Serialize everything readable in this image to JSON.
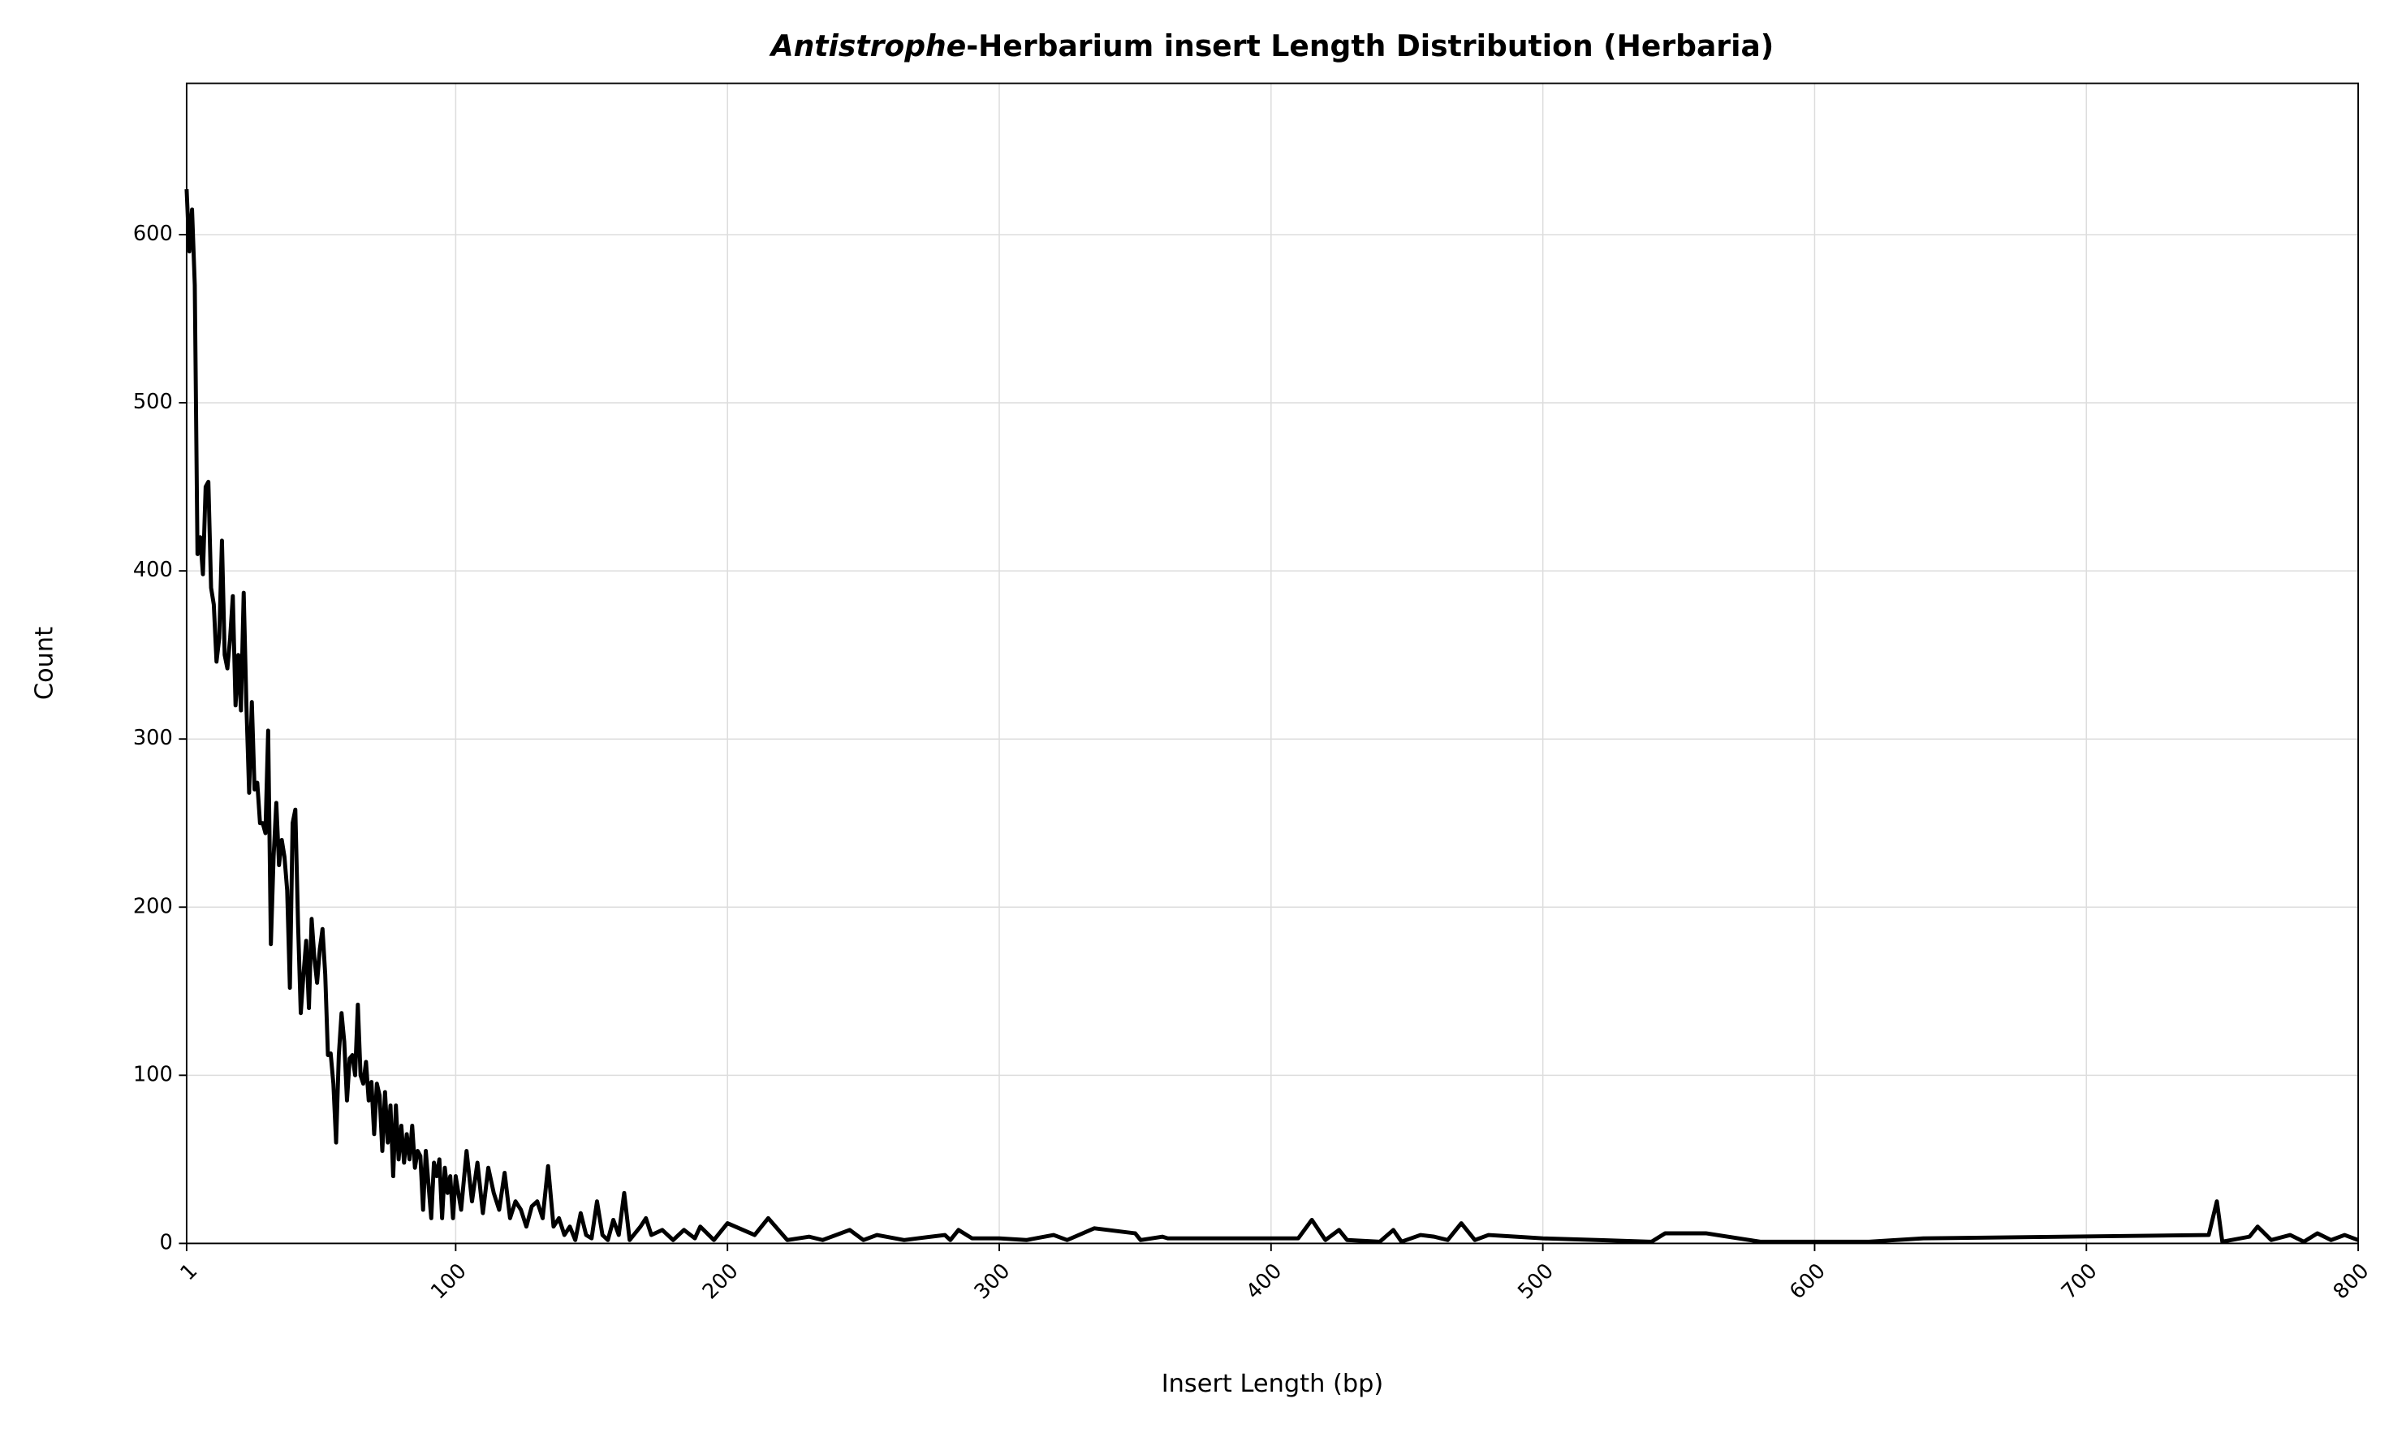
{
  "chart_data": {
    "type": "line",
    "title_italic": "Antistrophe",
    "title_rest": "-Herbarium insert Length Distribution (Herbaria)",
    "xlabel": "Insert Length (bp)",
    "ylabel": "Count",
    "xlim": [
      1,
      800
    ],
    "ylim": [
      0,
      690
    ],
    "xticks": [
      1,
      100,
      200,
      300,
      400,
      500,
      600,
      700,
      800
    ],
    "yticks": [
      0,
      100,
      200,
      300,
      400,
      500,
      600
    ],
    "grid": true,
    "series": [
      {
        "color": "#000000",
        "x": [
          1,
          2,
          3,
          4,
          5,
          6,
          7,
          8,
          9,
          10,
          11,
          12,
          13,
          14,
          15,
          16,
          17,
          18,
          19,
          20,
          21,
          22,
          23,
          24,
          25,
          26,
          27,
          28,
          29,
          30,
          31,
          32,
          33,
          34,
          35,
          36,
          37,
          38,
          39,
          40,
          41,
          42,
          43,
          44,
          45,
          46,
          47,
          48,
          49,
          50,
          51,
          52,
          53,
          54,
          55,
          56,
          57,
          58,
          59,
          60,
          61,
          62,
          63,
          64,
          65,
          66,
          67,
          68,
          69,
          70,
          71,
          72,
          73,
          74,
          75,
          76,
          77,
          78,
          79,
          80,
          81,
          82,
          83,
          84,
          85,
          86,
          87,
          88,
          89,
          90,
          91,
          92,
          93,
          94,
          95,
          96,
          97,
          98,
          99,
          100,
          102,
          104,
          106,
          108,
          110,
          112,
          114,
          116,
          118,
          120,
          122,
          124,
          126,
          128,
          130,
          132,
          134,
          136,
          138,
          140,
          142,
          144,
          146,
          148,
          150,
          152,
          154,
          156,
          158,
          160,
          162,
          164,
          168,
          170,
          172,
          176,
          180,
          184,
          188,
          190,
          195,
          200,
          210,
          215,
          222,
          230,
          235,
          245,
          250,
          255,
          265,
          270,
          280,
          282,
          285,
          290,
          300,
          310,
          320,
          325,
          335,
          350,
          352,
          360,
          362,
          410,
          415,
          420,
          425,
          428,
          440,
          445,
          448,
          455,
          460,
          465,
          470,
          475,
          480,
          490,
          500,
          520,
          540,
          545,
          560,
          580,
          620,
          640,
          745,
          748,
          750,
          760,
          763,
          768,
          775,
          780,
          785,
          790,
          795,
          800
        ],
        "values": [
          627,
          590,
          615,
          570,
          410,
          420,
          398,
          450,
          453,
          390,
          380,
          346,
          360,
          418,
          350,
          342,
          360,
          385,
          320,
          350,
          317,
          387,
          320,
          268,
          322,
          270,
          274,
          250,
          250,
          244,
          305,
          178,
          230,
          262,
          225,
          240,
          230,
          210,
          152,
          250,
          258,
          190,
          137,
          160,
          180,
          140,
          193,
          170,
          155,
          175,
          187,
          160,
          112,
          113,
          95,
          60,
          112,
          137,
          120,
          85,
          110,
          112,
          100,
          142,
          100,
          95,
          108,
          85,
          96,
          65,
          95,
          88,
          55,
          90,
          60,
          82,
          40,
          82,
          50,
          70,
          48,
          65,
          50,
          70,
          45,
          55,
          52,
          20,
          55,
          35,
          15,
          48,
          40,
          50,
          15,
          45,
          30,
          40,
          15,
          40,
          20,
          55,
          25,
          48,
          18,
          45,
          30,
          20,
          42,
          15,
          25,
          20,
          10,
          22,
          25,
          15,
          46,
          10,
          15,
          5,
          10,
          2,
          18,
          5,
          3,
          25,
          5,
          2,
          14,
          5,
          30,
          2,
          10,
          15,
          5,
          8,
          2,
          8,
          3,
          10,
          2,
          12,
          5,
          15,
          2,
          4,
          2,
          8,
          2,
          5,
          2,
          3,
          5,
          2,
          8,
          3,
          3,
          2,
          5,
          2,
          9,
          6,
          2,
          4,
          3,
          3,
          14,
          2,
          8,
          2,
          1,
          8,
          1,
          5,
          4,
          2,
          12,
          2,
          5,
          4,
          3,
          2,
          1,
          6,
          6,
          1,
          1,
          3,
          5,
          25,
          1,
          4,
          10,
          2,
          5,
          1,
          6,
          2,
          5,
          2
        ]
      }
    ]
  }
}
